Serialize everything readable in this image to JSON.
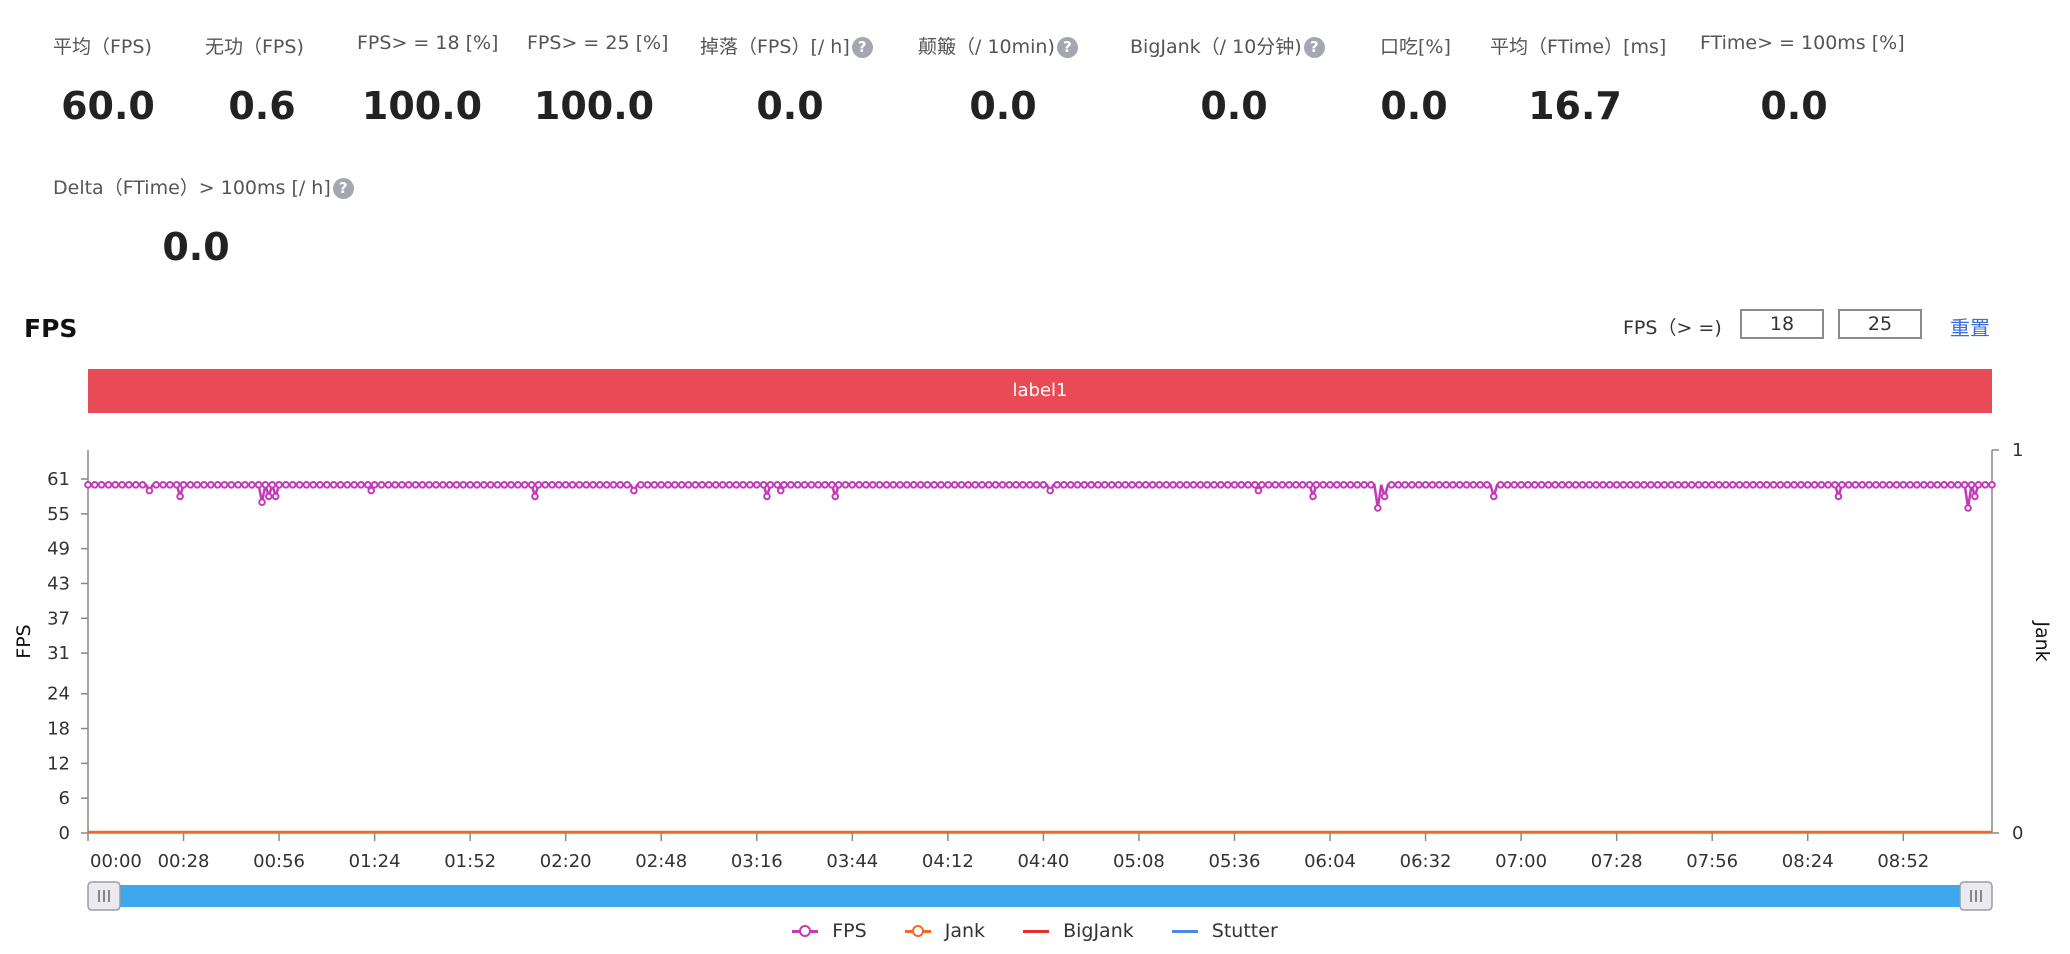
{
  "metrics": [
    {
      "label": "平均（FPS)",
      "value": "60.0",
      "help": false
    },
    {
      "label": "无功（FPS)",
      "value": "0.6",
      "help": false
    },
    {
      "label": "FPS> = 18 [%]",
      "value": "100.0",
      "help": false
    },
    {
      "label": "FPS> = 25 [%]",
      "value": "100.0",
      "help": false
    },
    {
      "label": "掉落（FPS）[/ h]",
      "value": "0.0",
      "help": true
    },
    {
      "label": "颠簸（/ 10min)",
      "value": "0.0",
      "help": true
    },
    {
      "label": "BigJank（/ 10分钟)",
      "value": "0.0",
      "help": true
    },
    {
      "label": "口吃[%]",
      "value": "0.0",
      "help": false
    },
    {
      "label": "平均（FTime）[ms]",
      "value": "16.7",
      "help": false
    },
    {
      "label": "FTime> = 100ms [%]",
      "value": "0.0",
      "help": false
    },
    {
      "label": "Delta（FTime）> 100ms [/ h]",
      "value": "0.0",
      "help": true
    }
  ],
  "help_glyph": "?",
  "section_title": "FPS",
  "threshold": {
    "label": "FPS（> =)",
    "value1": "18",
    "value2": "25",
    "reset_label": "重置"
  },
  "label_bar": "label1",
  "colors": {
    "fps": "#c23ab8",
    "jank": "#f06a2c",
    "bigjank": "#e2302c",
    "stutter": "#4a88f0",
    "label_bar": "#e84a56",
    "slider": "#3da8ee"
  },
  "chart_data": {
    "type": "line",
    "title": "",
    "ylabel": "FPS",
    "y2label": "Jank",
    "yticks": [
      0,
      6,
      12,
      18,
      24,
      31,
      37,
      43,
      49,
      55,
      61
    ],
    "ylim": [
      0,
      66
    ],
    "y2ticks": [
      0,
      1
    ],
    "y2lim": [
      0,
      1
    ],
    "xticks": [
      "00:00",
      "00:28",
      "00:56",
      "01:24",
      "01:52",
      "02:20",
      "02:48",
      "03:16",
      "03:44",
      "04:12",
      "04:40",
      "05:08",
      "05:36",
      "06:04",
      "06:32",
      "07:00",
      "07:28",
      "07:56",
      "08:24",
      "08:52"
    ],
    "x_range_seconds": [
      0,
      558
    ],
    "series": [
      {
        "name": "FPS",
        "baseline": 60,
        "dips": [
          {
            "t": 18,
            "v": 59
          },
          {
            "t": 27,
            "v": 58
          },
          {
            "t": 51,
            "v": 57
          },
          {
            "t": 53,
            "v": 58
          },
          {
            "t": 55,
            "v": 58
          },
          {
            "t": 83,
            "v": 59
          },
          {
            "t": 131,
            "v": 58
          },
          {
            "t": 160,
            "v": 59
          },
          {
            "t": 199,
            "v": 58
          },
          {
            "t": 203,
            "v": 59
          },
          {
            "t": 219,
            "v": 58
          },
          {
            "t": 282,
            "v": 59
          },
          {
            "t": 343,
            "v": 59
          },
          {
            "t": 359,
            "v": 58
          },
          {
            "t": 378,
            "v": 56
          },
          {
            "t": 380,
            "v": 58
          },
          {
            "t": 412,
            "v": 58
          },
          {
            "t": 513,
            "v": 58
          },
          {
            "t": 551,
            "v": 56
          },
          {
            "t": 553,
            "v": 58
          }
        ]
      },
      {
        "name": "Jank",
        "values_constant": 0
      },
      {
        "name": "BigJank",
        "values_constant": 0
      },
      {
        "name": "Stutter",
        "values_constant": 0
      }
    ],
    "legend_position": "bottom-center"
  }
}
